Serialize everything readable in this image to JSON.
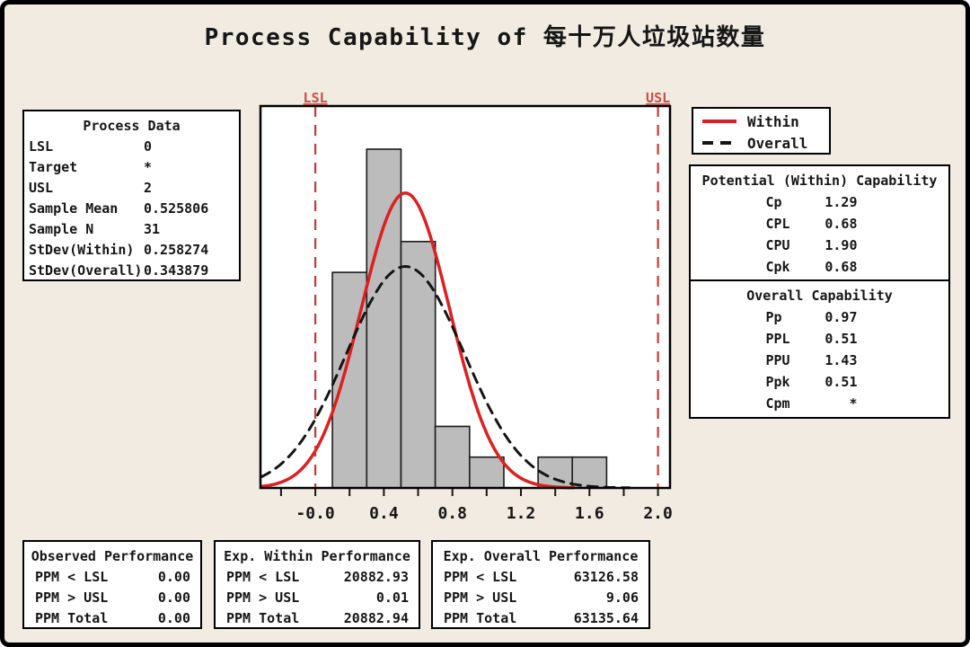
{
  "title": "Process Capability of 每十万人垃圾站数量",
  "process_data": {
    "title": "Process Data",
    "rows": [
      {
        "label": "LSL",
        "value": "0"
      },
      {
        "label": "Target",
        "value": "*"
      },
      {
        "label": "USL",
        "value": "2"
      },
      {
        "label": "Sample Mean",
        "value": "0.525806"
      },
      {
        "label": "Sample N",
        "value": "31"
      },
      {
        "label": "StDev(Within)",
        "value": "0.258274"
      },
      {
        "label": "StDev(Overall)",
        "value": "0.343879"
      }
    ]
  },
  "legend": {
    "items": [
      {
        "label": "Within",
        "color": "#d2232a",
        "style": "solid"
      },
      {
        "label": "Overall",
        "color": "#141414",
        "style": "dashed"
      }
    ]
  },
  "within_capability": {
    "title": "Potential (Within) Capability",
    "rows": [
      {
        "label": "Cp",
        "value": "1.29"
      },
      {
        "label": "CPL",
        "value": "0.68"
      },
      {
        "label": "CPU",
        "value": "1.90"
      },
      {
        "label": "Cpk",
        "value": "0.68"
      }
    ]
  },
  "overall_capability": {
    "title": "Overall Capability",
    "rows": [
      {
        "label": "Pp",
        "value": "0.97"
      },
      {
        "label": "PPL",
        "value": "0.51"
      },
      {
        "label": "PPU",
        "value": "1.43"
      },
      {
        "label": "Ppk",
        "value": "0.51"
      },
      {
        "label": "Cpm",
        "value": "*"
      }
    ]
  },
  "performance": {
    "observed": {
      "title": "Observed Performance",
      "rows": [
        {
          "label": "PPM < LSL",
          "value": "0.00"
        },
        {
          "label": "PPM > USL",
          "value": "0.00"
        },
        {
          "label": "PPM Total",
          "value": "0.00"
        }
      ]
    },
    "exp_within": {
      "title": "Exp. Within Performance",
      "rows": [
        {
          "label": "PPM < LSL",
          "value": "20882.93"
        },
        {
          "label": "PPM > USL",
          "value": "0.01"
        },
        {
          "label": "PPM Total",
          "value": "20882.94"
        }
      ]
    },
    "exp_overall": {
      "title": "Exp. Overall Performance",
      "rows": [
        {
          "label": "PPM < LSL",
          "value": "63126.58"
        },
        {
          "label": "PPM > USL",
          "value": "9.06"
        },
        {
          "label": "PPM Total",
          "value": "63135.64"
        }
      ]
    }
  },
  "chart_data": {
    "type": "bar",
    "subtype": "process-capability-histogram",
    "title": "Process Capability of 每十万人垃圾站数量",
    "bin_width": 0.2,
    "bin_centers": [
      0.2,
      0.4,
      0.6,
      0.8,
      1.0,
      1.2,
      1.4,
      1.6
    ],
    "frequencies": [
      7,
      11,
      8,
      2,
      1,
      0,
      1,
      1
    ],
    "sample_n": 31,
    "x_range": [
      -0.32,
      2.07
    ],
    "y_max_counts": 12.4,
    "x_tick_min": -0.2,
    "x_tick_max": 2.0,
    "x_tick_step": 0.2,
    "x_labels": [
      {
        "value": 0,
        "text": "-0.0"
      },
      {
        "value": 0.4,
        "text": "0.4"
      },
      {
        "value": 0.8,
        "text": "0.8"
      },
      {
        "value": 1.2,
        "text": "1.2"
      },
      {
        "value": 1.6,
        "text": "1.6"
      },
      {
        "value": 2.0,
        "text": "2.0"
      }
    ],
    "spec_limits": [
      {
        "label": "LSL",
        "value": 0
      },
      {
        "label": "USL",
        "value": 2
      }
    ],
    "curves": [
      {
        "name": "Within",
        "mean": 0.525806,
        "stdev": 0.258274,
        "color": "#dd1f1f",
        "dash": "",
        "width": 3.5
      },
      {
        "name": "Overall",
        "mean": 0.525806,
        "stdev": 0.343879,
        "color": "#141414",
        "dash": "11 8",
        "width": 3
      }
    ],
    "bar_fill": "#bcbcbc",
    "bar_stroke": "#1a1a1a",
    "spec_color": "#c23b34",
    "grid": false,
    "legend_position": "top-right"
  }
}
